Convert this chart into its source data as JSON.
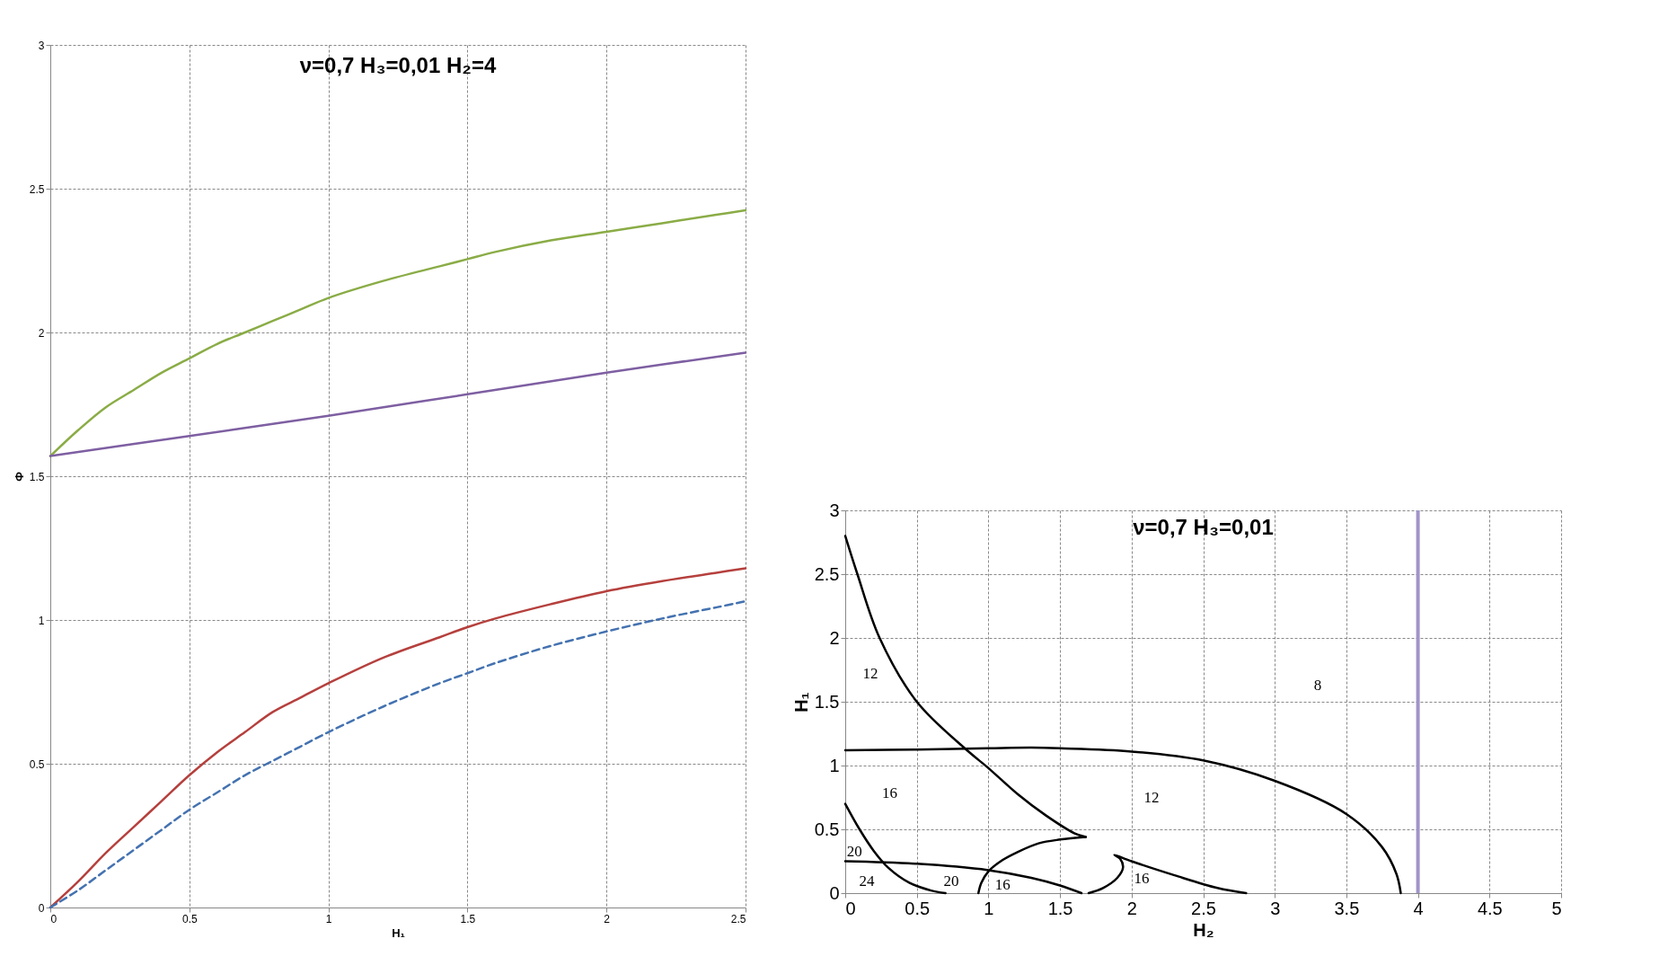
{
  "chart_data": [
    {
      "type": "line",
      "title": "ν=0,7    H₃=0,01    H₂=4",
      "xlabel": "H₁",
      "ylabel": "Φ",
      "xlim": [
        0,
        2.5
      ],
      "ylim": [
        0,
        3
      ],
      "xticks": [
        0,
        0.5,
        1,
        1.5,
        2,
        2.5
      ],
      "yticks": [
        0,
        0.5,
        1,
        1.5,
        2,
        2.5,
        3
      ],
      "grid": true,
      "marker": "none",
      "series": [
        {
          "color": "#8aac46",
          "line_style": "solid",
          "x": [
            0,
            0.1,
            0.2,
            0.3,
            0.4,
            0.5,
            0.6,
            0.7,
            0.8,
            0.9,
            1,
            1.2,
            1.4,
            1.5,
            1.6,
            1.8,
            2,
            2.2,
            2.4,
            2.5
          ],
          "values": [
            1.57,
            1.66,
            1.74,
            1.8,
            1.86,
            1.91,
            1.96,
            2,
            2.04,
            2.08,
            2.12,
            2.18,
            2.23,
            2.255,
            2.28,
            2.32,
            2.35,
            2.38,
            2.41,
            2.425
          ]
        },
        {
          "color": "#7e5fa2",
          "line_style": "solid",
          "x": [
            0,
            0.5,
            1,
            1.5,
            2,
            2.5
          ],
          "values": [
            1.57,
            1.64,
            1.71,
            1.785,
            1.86,
            1.93
          ]
        },
        {
          "color": "#b5403d",
          "line_style": "solid",
          "x": [
            0,
            0.1,
            0.2,
            0.3,
            0.4,
            0.5,
            0.6,
            0.7,
            0.8,
            0.9,
            1,
            1.2,
            1.4,
            1.5,
            1.6,
            1.8,
            2,
            2.2,
            2.4,
            2.5
          ],
          "values": [
            0,
            0.09,
            0.19,
            0.28,
            0.37,
            0.46,
            0.54,
            0.61,
            0.68,
            0.73,
            0.78,
            0.87,
            0.94,
            0.975,
            1.005,
            1.055,
            1.1,
            1.135,
            1.165,
            1.18
          ]
        },
        {
          "color": "#4472b0",
          "line_style": "dashed",
          "x": [
            0,
            0.1,
            0.2,
            0.3,
            0.4,
            0.5,
            0.6,
            0.7,
            0.8,
            0.9,
            1,
            1.2,
            1.4,
            1.5,
            1.6,
            1.8,
            2,
            2.2,
            2.4,
            2.5
          ],
          "values": [
            0,
            0.06,
            0.13,
            0.2,
            0.27,
            0.34,
            0.4,
            0.46,
            0.51,
            0.56,
            0.61,
            0.7,
            0.78,
            0.815,
            0.85,
            0.91,
            0.96,
            1.005,
            1.045,
            1.065
          ]
        }
      ]
    },
    {
      "type": "line",
      "title": "ν=0,7    H₃=0,01",
      "xlabel": "H₂",
      "ylabel": "H₁",
      "xlim": [
        0,
        5
      ],
      "ylim": [
        0,
        3
      ],
      "xticks": [
        0,
        0.5,
        1,
        1.5,
        2,
        2.5,
        3,
        3.5,
        4,
        4.5,
        5
      ],
      "yticks": [
        0,
        0.5,
        1,
        1.5,
        2,
        2.5,
        3
      ],
      "grid": true,
      "marker": "none",
      "series": [
        {
          "color": "#000000",
          "line_style": "solid",
          "x": [
            0,
            0.085,
            0.24,
            0.5,
            0.84,
            1,
            1.2,
            1.4,
            1.6,
            1.68
          ],
          "values": [
            2.8,
            2.5,
            2,
            1.5,
            1.13,
            0.98,
            0.78,
            0.61,
            0.47,
            0.44
          ]
        },
        {
          "color": "#000000",
          "line_style": "solid",
          "x": [
            0.93,
            0.95,
            1,
            1.1,
            1.2,
            1.35,
            1.5,
            1.68
          ],
          "values": [
            0,
            0.08,
            0.17,
            0.26,
            0.32,
            0.39,
            0.42,
            0.44
          ]
        },
        {
          "color": "#000000",
          "line_style": "solid",
          "x": [
            0,
            0.5,
            1,
            1.3,
            1.5,
            2,
            2.5,
            3,
            3.5,
            3.75,
            3.85,
            3.88
          ],
          "values": [
            1.12,
            1.125,
            1.135,
            1.14,
            1.135,
            1.11,
            1.04,
            0.88,
            0.62,
            0.36,
            0.15,
            0
          ]
        },
        {
          "color": "#000000",
          "line_style": "solid",
          "x": [
            0,
            0.1,
            0.2,
            0.3,
            0.45,
            0.6,
            0.7
          ],
          "values": [
            0.7,
            0.5,
            0.33,
            0.2,
            0.08,
            0.02,
            0
          ]
        },
        {
          "color": "#000000",
          "line_style": "solid",
          "x": [
            0,
            0.5,
            1,
            1.3,
            1.5,
            1.65
          ],
          "values": [
            0.25,
            0.23,
            0.18,
            0.12,
            0.06,
            0
          ]
        },
        {
          "color": "#000000",
          "line_style": "solid",
          "x": [
            1.7,
            1.8,
            1.9,
            1.94,
            1.92,
            1.88,
            2,
            2.3,
            2.6,
            2.8
          ],
          "values": [
            0,
            0.04,
            0.12,
            0.2,
            0.27,
            0.3,
            0.25,
            0.14,
            0.04,
            0
          ]
        }
      ],
      "ref_lines": [
        {
          "axis": "x",
          "value": 4,
          "color": "#a094c8"
        }
      ],
      "annotations": [
        "12",
        "8",
        "16",
        "12",
        "20",
        "24",
        "20",
        "16",
        "16"
      ]
    }
  ]
}
